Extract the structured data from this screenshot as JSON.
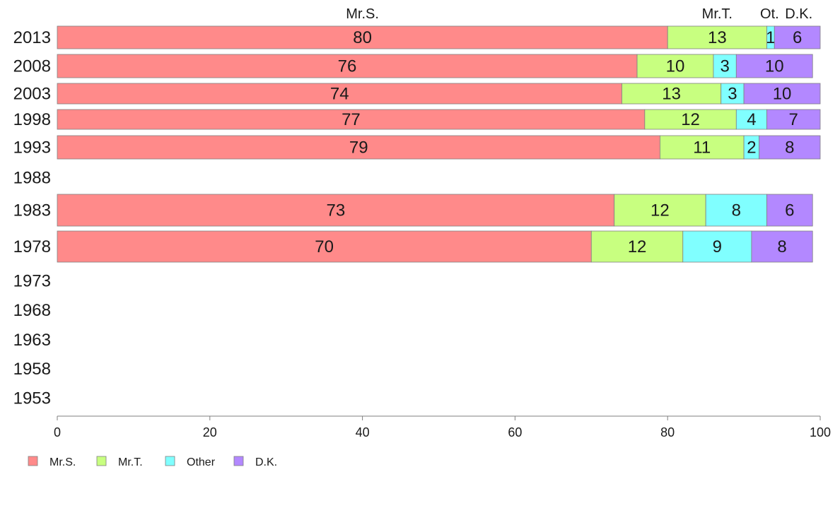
{
  "chart_data": {
    "type": "bar",
    "orientation": "horizontal",
    "stacked": true,
    "title": "",
    "xlabel": "",
    "ylabel": "",
    "xlim": [
      0,
      100
    ],
    "x_ticks": [
      "0",
      "20",
      "40",
      "60",
      "80",
      "100"
    ],
    "categories": [
      "2013",
      "2008",
      "2003",
      "1998",
      "1993",
      "1988",
      "1983",
      "1978",
      "1973",
      "1968",
      "1963",
      "1958",
      "1953"
    ],
    "series": [
      {
        "name": "Mr.S.",
        "color": "#ff8a8a",
        "values": [
          80,
          76,
          74,
          77,
          79,
          null,
          73,
          70,
          null,
          null,
          null,
          null,
          null
        ]
      },
      {
        "name": "Mr.T.",
        "color": "#c8ff80",
        "values": [
          13,
          10,
          13,
          12,
          11,
          null,
          12,
          12,
          null,
          null,
          null,
          null,
          null
        ]
      },
      {
        "name": "Other",
        "color": "#80ffff",
        "values": [
          1,
          3,
          3,
          4,
          2,
          null,
          8,
          9,
          null,
          null,
          null,
          null,
          null
        ]
      },
      {
        "name": "D.K.",
        "color": "#b388ff",
        "values": [
          6,
          10,
          10,
          7,
          8,
          null,
          6,
          8,
          null,
          null,
          null,
          null,
          null
        ]
      }
    ],
    "column_headers": [
      "Mr.S.",
      "Mr.T.",
      "Ot.",
      "D.K."
    ],
    "legend_placement": "bottom-left",
    "grid": false
  }
}
